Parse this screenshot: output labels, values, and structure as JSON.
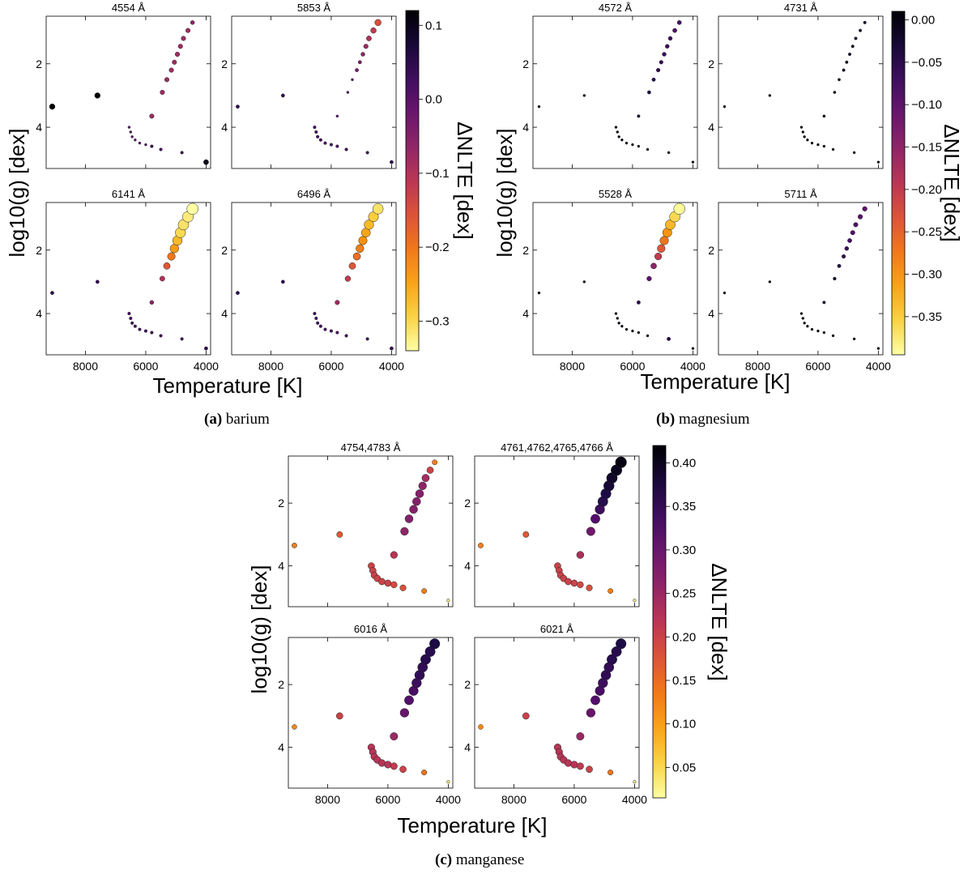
{
  "figure": {
    "captions": [
      {
        "label": "(a)",
        "text": "barium"
      },
      {
        "label": "(b)",
        "text": "magnesium"
      },
      {
        "label": "(c)",
        "text": "manganese"
      }
    ]
  },
  "chart_data": [
    {
      "type": "scatter",
      "panel_group": "(a) barium",
      "xlabel": "Temperature [K]",
      "ylabel": "log10(g) [dex]",
      "xlim": [
        9300,
        3850
      ],
      "ylim": [
        5.3,
        0.5
      ],
      "xticks": [
        8000,
        6000,
        4000
      ],
      "yticks": [
        2,
        4
      ],
      "colorbar": {
        "label": "ΔNLTE [dex]",
        "min": -0.34,
        "max": 0.12,
        "ticks": [
          0.1,
          0.0,
          -0.1,
          -0.2,
          -0.3
        ],
        "tick_labels": [
          "0.1",
          "0.0",
          "−0.1",
          "−0.2",
          "−0.3"
        ]
      },
      "x": [
        9100,
        7600,
        6550,
        6500,
        6450,
        6350,
        6200,
        6000,
        5800,
        5500,
        4800,
        4000,
        5800,
        5450,
        5300,
        5150,
        5050,
        4950,
        4850,
        4750,
        4600,
        4450
      ],
      "y": [
        3.35,
        3.0,
        4.0,
        4.15,
        4.3,
        4.4,
        4.5,
        4.55,
        4.6,
        4.7,
        4.8,
        5.1,
        3.65,
        2.9,
        2.5,
        2.2,
        1.95,
        1.7,
        1.45,
        1.2,
        0.95,
        0.7
      ],
      "panels": [
        {
          "title": "4554 Å",
          "values": [
            0.12,
            0.12,
            0.0,
            0.0,
            0.0,
            0.0,
            0.0,
            0.0,
            0.02,
            0.02,
            0.02,
            0.1,
            -0.08,
            -0.08,
            -0.08,
            -0.08,
            -0.08,
            -0.08,
            -0.08,
            -0.08,
            -0.08,
            -0.06
          ]
        },
        {
          "title": "5853 Å",
          "values": [
            0.04,
            0.04,
            0.02,
            0.02,
            0.02,
            0.02,
            0.02,
            0.02,
            0.02,
            0.02,
            0.02,
            0.04,
            0.0,
            0.0,
            0.0,
            -0.04,
            -0.04,
            -0.06,
            -0.08,
            -0.1,
            -0.12,
            -0.15
          ]
        },
        {
          "title": "6141 Å",
          "values": [
            0.04,
            0.04,
            0.02,
            0.02,
            0.02,
            0.02,
            0.02,
            0.02,
            0.02,
            0.02,
            0.02,
            0.04,
            -0.06,
            -0.1,
            -0.16,
            -0.2,
            -0.24,
            -0.27,
            -0.3,
            -0.31,
            -0.32,
            -0.34
          ]
        },
        {
          "title": "6496 Å",
          "values": [
            0.04,
            0.04,
            0.02,
            0.02,
            0.02,
            0.02,
            0.02,
            0.02,
            0.02,
            0.02,
            0.02,
            0.04,
            -0.08,
            -0.12,
            -0.16,
            -0.19,
            -0.21,
            -0.23,
            -0.25,
            -0.27,
            -0.29,
            -0.31
          ]
        }
      ]
    },
    {
      "type": "scatter",
      "panel_group": "(b) magnesium",
      "xlabel": "Temperature [K]",
      "ylabel": "log10(g) [dex]",
      "xlim": [
        9300,
        3850
      ],
      "ylim": [
        5.3,
        0.5
      ],
      "xticks": [
        8000,
        6000,
        4000
      ],
      "yticks": [
        2,
        4
      ],
      "colorbar": {
        "label": "ΔNLTE [dex]",
        "min": -0.395,
        "max": 0.01,
        "ticks": [
          0.0,
          -0.05,
          -0.1,
          -0.15,
          -0.2,
          -0.25,
          -0.3,
          -0.35
        ],
        "tick_labels": [
          "0.00",
          "−0.05",
          "−0.10",
          "−0.15",
          "−0.20",
          "−0.25",
          "−0.30",
          "−0.35"
        ]
      },
      "x": [
        9100,
        7600,
        6550,
        6500,
        6450,
        6350,
        6200,
        6000,
        5800,
        5500,
        4800,
        4000,
        5800,
        5450,
        5300,
        5150,
        5050,
        4950,
        4850,
        4750,
        4600,
        4450
      ],
      "y": [
        3.35,
        3.0,
        4.0,
        4.15,
        4.3,
        4.4,
        4.5,
        4.55,
        4.6,
        4.7,
        4.8,
        5.1,
        3.65,
        2.9,
        2.5,
        2.2,
        1.95,
        1.7,
        1.45,
        1.2,
        0.95,
        0.7
      ],
      "panels": [
        {
          "title": "4572 Å",
          "values": [
            0.0,
            0.0,
            0.0,
            0.0,
            0.0,
            0.0,
            0.0,
            0.0,
            0.0,
            0.0,
            0.0,
            0.0,
            -0.02,
            -0.04,
            -0.05,
            -0.06,
            -0.06,
            -0.07,
            -0.07,
            -0.07,
            -0.08,
            -0.08
          ]
        },
        {
          "title": "4731 Å",
          "values": [
            0.0,
            0.0,
            0.0,
            0.0,
            0.0,
            0.0,
            0.0,
            0.0,
            0.0,
            0.0,
            0.0,
            0.0,
            -0.01,
            -0.01,
            -0.01,
            -0.02,
            -0.02,
            -0.02,
            -0.02,
            -0.02,
            -0.02,
            -0.02
          ]
        },
        {
          "title": "5528 Å",
          "values": [
            0.0,
            0.0,
            0.0,
            0.0,
            0.0,
            0.0,
            0.0,
            0.0,
            0.0,
            0.0,
            -0.05,
            0.0,
            -0.05,
            -0.1,
            -0.15,
            -0.2,
            -0.24,
            -0.27,
            -0.3,
            -0.33,
            -0.36,
            -0.39
          ]
        },
        {
          "title": "5711 Å",
          "values": [
            0.0,
            0.0,
            0.0,
            0.0,
            0.0,
            0.0,
            0.0,
            0.0,
            0.0,
            0.0,
            0.0,
            0.0,
            -0.02,
            -0.03,
            -0.05,
            -0.06,
            -0.07,
            -0.08,
            -0.09,
            -0.09,
            -0.1,
            -0.1
          ]
        }
      ]
    },
    {
      "type": "scatter",
      "panel_group": "(c) manganese",
      "xlabel": "Temperature [K]",
      "ylabel": "log10(g) [dex]",
      "xlim": [
        9300,
        3850
      ],
      "ylim": [
        5.3,
        0.5
      ],
      "xticks": [
        8000,
        6000,
        4000
      ],
      "yticks": [
        2,
        4
      ],
      "colorbar": {
        "label": "ΔNLTE [dex]",
        "min": 0.015,
        "max": 0.42,
        "ticks": [
          0.05,
          0.1,
          0.15,
          0.2,
          0.25,
          0.3,
          0.35,
          0.4
        ],
        "tick_labels": [
          "0.05",
          "0.10",
          "0.15",
          "0.20",
          "0.25",
          "0.30",
          "0.35",
          "0.40"
        ]
      },
      "x": [
        9100,
        7600,
        6550,
        6500,
        6450,
        6350,
        6200,
        6000,
        5800,
        5500,
        4800,
        4000,
        5800,
        5450,
        5300,
        5150,
        5050,
        4950,
        4850,
        4750,
        4600,
        4450
      ],
      "y": [
        3.35,
        3.0,
        4.0,
        4.15,
        4.3,
        4.4,
        4.5,
        4.55,
        4.6,
        4.7,
        4.8,
        5.1,
        3.65,
        2.9,
        2.5,
        2.2,
        1.95,
        1.7,
        1.45,
        1.2,
        0.95,
        0.7
      ],
      "panels": [
        {
          "title": "4754,4783 Å",
          "values": [
            0.13,
            0.17,
            0.2,
            0.2,
            0.2,
            0.2,
            0.2,
            0.2,
            0.19,
            0.18,
            0.13,
            0.03,
            0.22,
            0.26,
            0.27,
            0.27,
            0.27,
            0.27,
            0.26,
            0.24,
            0.2,
            0.13
          ]
        },
        {
          "title": "4761,4762,4765,4766 Å",
          "values": [
            0.13,
            0.17,
            0.2,
            0.2,
            0.2,
            0.2,
            0.2,
            0.2,
            0.19,
            0.18,
            0.13,
            0.03,
            0.23,
            0.29,
            0.32,
            0.34,
            0.36,
            0.37,
            0.38,
            0.39,
            0.4,
            0.41
          ]
        },
        {
          "title": "6016 Å",
          "values": [
            0.12,
            0.2,
            0.22,
            0.22,
            0.22,
            0.22,
            0.22,
            0.22,
            0.21,
            0.2,
            0.14,
            0.03,
            0.25,
            0.3,
            0.32,
            0.33,
            0.34,
            0.35,
            0.35,
            0.36,
            0.36,
            0.37
          ]
        },
        {
          "title": "6021 Å",
          "values": [
            0.12,
            0.2,
            0.22,
            0.22,
            0.22,
            0.22,
            0.22,
            0.22,
            0.21,
            0.2,
            0.14,
            0.03,
            0.25,
            0.3,
            0.32,
            0.33,
            0.34,
            0.35,
            0.35,
            0.36,
            0.36,
            0.37
          ]
        }
      ]
    }
  ]
}
